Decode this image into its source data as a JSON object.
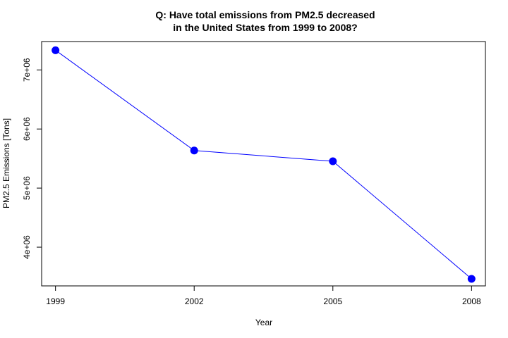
{
  "chart_data": {
    "type": "line",
    "title_lines": [
      "Q: Have total emissions from PM2.5 decreased",
      "in the United States from 1999 to 2008?"
    ],
    "xlabel": "Year",
    "ylabel": "PM2.5 Emissions [Tons]",
    "x": [
      1999,
      2002,
      2005,
      2008
    ],
    "x_tick_labels": [
      "1999",
      "2002",
      "2005",
      "2008"
    ],
    "y_ticks": [
      4000000,
      5000000,
      6000000,
      7000000
    ],
    "y_tick_labels": [
      "4e+06",
      "5e+06",
      "6e+06",
      "7e+06"
    ],
    "xlim": [
      1998.7,
      2008.3
    ],
    "ylim": [
      3345000,
      7480000
    ],
    "series": [
      {
        "values": [
          7332967,
          5635780,
          5454703,
          3464206
        ],
        "color": "#0000ff"
      }
    ],
    "grid": false
  }
}
